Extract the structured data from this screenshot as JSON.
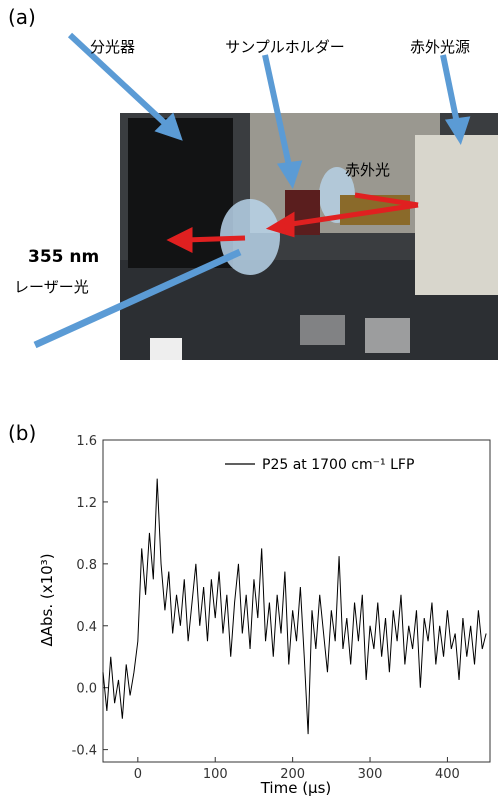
{
  "panel_a": {
    "label": "(a)",
    "spectrometer": "分光器",
    "sample_holder": "サンプルホルダー",
    "ir_source": "赤外光源",
    "ir_light": "赤外光",
    "laser_wavelength": "355 nm",
    "laser_light": "レーザー光"
  },
  "chart_data": {
    "type": "line",
    "panel_label": "(b)",
    "x_label": "Time (µs)",
    "y_label": "ΔAbs. (x10³)",
    "x": [
      -45,
      -40,
      -35,
      -30,
      -25,
      -20,
      -15,
      -10,
      -5,
      0,
      5,
      10,
      15,
      20,
      25,
      30,
      35,
      40,
      45,
      50,
      55,
      60,
      65,
      70,
      75,
      80,
      85,
      90,
      95,
      100,
      105,
      110,
      115,
      120,
      125,
      130,
      135,
      140,
      145,
      150,
      155,
      160,
      165,
      170,
      175,
      180,
      185,
      190,
      195,
      200,
      205,
      210,
      215,
      220,
      225,
      230,
      235,
      240,
      245,
      250,
      255,
      260,
      265,
      270,
      275,
      280,
      285,
      290,
      295,
      300,
      305,
      310,
      315,
      320,
      325,
      330,
      335,
      340,
      345,
      350,
      355,
      360,
      365,
      370,
      375,
      380,
      385,
      390,
      395,
      400,
      405,
      410,
      415,
      420,
      425,
      430,
      435,
      440,
      445,
      450
    ],
    "series": [
      {
        "name": "P25 at 1700 cm⁻¹ LFP",
        "color": "#000000",
        "values": [
          0.1,
          -0.15,
          0.2,
          -0.1,
          0.05,
          -0.2,
          0.15,
          -0.05,
          0.1,
          0.3,
          0.9,
          0.6,
          1.0,
          0.7,
          1.35,
          0.8,
          0.5,
          0.75,
          0.35,
          0.6,
          0.4,
          0.7,
          0.3,
          0.55,
          0.8,
          0.4,
          0.65,
          0.3,
          0.7,
          0.45,
          0.75,
          0.35,
          0.6,
          0.2,
          0.55,
          0.8,
          0.35,
          0.6,
          0.25,
          0.7,
          0.45,
          0.9,
          0.3,
          0.55,
          0.2,
          0.6,
          0.35,
          0.75,
          0.15,
          0.5,
          0.3,
          0.65,
          0.2,
          -0.3,
          0.5,
          0.25,
          0.6,
          0.35,
          0.1,
          0.5,
          0.3,
          0.85,
          0.25,
          0.45,
          0.15,
          0.55,
          0.3,
          0.6,
          0.05,
          0.4,
          0.25,
          0.55,
          0.2,
          0.45,
          0.1,
          0.5,
          0.3,
          0.6,
          0.15,
          0.4,
          0.25,
          0.5,
          0.0,
          0.45,
          0.3,
          0.55,
          0.15,
          0.4,
          0.2,
          0.5,
          0.25,
          0.35,
          0.05,
          0.45,
          0.2,
          0.4,
          0.15,
          0.5,
          0.25,
          0.35
        ]
      }
    ],
    "xlim": [
      -45,
      455
    ],
    "xticks": [
      0,
      100,
      200,
      300,
      400
    ],
    "ylim": [
      -0.48,
      1.6
    ],
    "yticks": [
      -0.4,
      {
        "value": 0,
        "label": "0.0"
      },
      0.4,
      0.8,
      1.2,
      1.6
    ]
  }
}
